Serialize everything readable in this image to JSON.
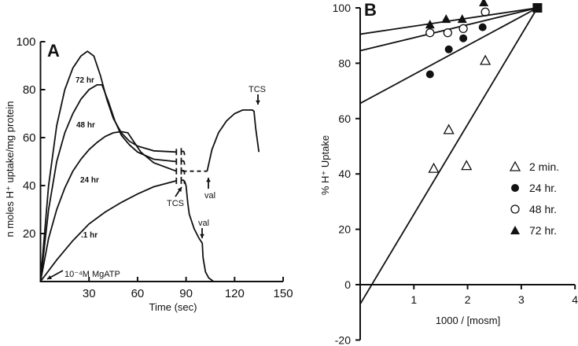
{
  "chart_data": [
    {
      "type": "line",
      "panel_label": "A",
      "xlabel": "Time (sec)",
      "ylabel": "n moles H⁺ uptake/mg protein",
      "xlim": [
        0,
        150
      ],
      "ylim": [
        0,
        100
      ],
      "xticks": [
        "30",
        "60",
        "90",
        "120",
        "150"
      ],
      "yticks": [
        "20",
        "40",
        "60",
        "80",
        "100"
      ],
      "series": [
        {
          "name": "72 hr",
          "points": [
            [
              0,
              0
            ],
            [
              5,
              40
            ],
            [
              10,
              65
            ],
            [
              15,
              80
            ],
            [
              20,
              89
            ],
            [
              25,
              94
            ],
            [
              29,
              96
            ],
            [
              33,
              94
            ],
            [
              37,
              86
            ],
            [
              41,
              76
            ],
            [
              45,
              68
            ],
            [
              50,
              62
            ],
            [
              55,
              58.5
            ],
            [
              60,
              56.5
            ],
            [
              70,
              54.5
            ],
            [
              84,
              54
            ]
          ]
        },
        {
          "name": "48 hr",
          "points": [
            [
              0,
              0
            ],
            [
              5,
              30
            ],
            [
              10,
              50
            ],
            [
              15,
              62
            ],
            [
              20,
              70
            ],
            [
              25,
              76
            ],
            [
              30,
              80
            ],
            [
              35,
              82
            ],
            [
              38,
              82
            ],
            [
              42,
              75
            ],
            [
              46,
              67
            ],
            [
              50,
              61
            ],
            [
              55,
              57
            ],
            [
              60,
              54
            ],
            [
              70,
              51
            ],
            [
              84,
              50
            ]
          ]
        },
        {
          "name": "24 hr",
          "points": [
            [
              0,
              0
            ],
            [
              5,
              18
            ],
            [
              10,
              30
            ],
            [
              15,
              39
            ],
            [
              20,
              46
            ],
            [
              25,
              51
            ],
            [
              30,
              55
            ],
            [
              35,
              58
            ],
            [
              40,
              60.5
            ],
            [
              45,
              62
            ],
            [
              50,
              62.5
            ],
            [
              54,
              62
            ],
            [
              58,
              58
            ],
            [
              62,
              54
            ],
            [
              70,
              49.5
            ],
            [
              84,
              46
            ]
          ],
          "continuation_dashed": [
            [
              88,
              46
            ],
            [
              103,
              46
            ]
          ],
          "continuation": [
            [
              103,
              46
            ],
            [
              106,
              55
            ],
            [
              110,
              62
            ],
            [
              115,
              67
            ],
            [
              120,
              70
            ],
            [
              125,
              71.5
            ],
            [
              131,
              71.5
            ],
            [
              132,
              71
            ],
            [
              133,
              64
            ],
            [
              135,
              54
            ]
          ]
        },
        {
          "name": ".1 hr",
          "points": [
            [
              0,
              0
            ],
            [
              10,
              9
            ],
            [
              20,
              17
            ],
            [
              30,
              24
            ],
            [
              40,
              29
            ],
            [
              50,
              33
            ],
            [
              60,
              36.5
            ],
            [
              70,
              39.5
            ],
            [
              84,
              42
            ]
          ],
          "continuation": [
            [
              89,
              42
            ],
            [
              90,
              40
            ],
            [
              91,
              33
            ],
            [
              92,
              28
            ],
            [
              95,
              22
            ],
            [
              98,
              18
            ],
            [
              100,
              16
            ],
            [
              100.5,
              10
            ],
            [
              102,
              4
            ],
            [
              104,
              1.5
            ],
            [
              107,
              0
            ]
          ]
        }
      ],
      "annotations": {
        "mgatp": "10⁻⁴M MgATP",
        "tcs_lower": "TCS",
        "val_lower": "val",
        "val_upper": "val",
        "tcs_upper": "TCS"
      }
    },
    {
      "type": "scatter",
      "panel_label": "B",
      "xlabel": "1000 / [mosm]",
      "ylabel": "% H⁺ Uptake",
      "xlim": [
        0,
        4
      ],
      "ylim": [
        -20,
        100
      ],
      "xticks": [
        "1",
        "2",
        "3",
        "4"
      ],
      "yticks": [
        "-20",
        "0",
        "20",
        "40",
        "60",
        "80",
        "100"
      ],
      "legend_position": "right",
      "common_point": [
        3.3,
        100
      ],
      "series": [
        {
          "name": "2 min.",
          "marker": "open-triangle",
          "points": [
            [
              1.37,
              42
            ],
            [
              1.65,
              56
            ],
            [
              1.98,
              43
            ],
            [
              2.33,
              81
            ]
          ],
          "fit": [
            [
              0,
              -7
            ],
            [
              3.3,
              100
            ]
          ]
        },
        {
          "name": "24 hr.",
          "marker": "filled-circle",
          "points": [
            [
              1.3,
              76
            ],
            [
              1.65,
              85
            ],
            [
              1.92,
              89
            ],
            [
              2.28,
              93
            ]
          ],
          "fit": [
            [
              0,
              65.5
            ],
            [
              3.3,
              100
            ]
          ]
        },
        {
          "name": "48 hr.",
          "marker": "open-circle",
          "points": [
            [
              1.3,
              91
            ],
            [
              1.63,
              91
            ],
            [
              1.92,
              92.5
            ],
            [
              2.33,
              98.5
            ]
          ],
          "fit": [
            [
              0,
              84.5
            ],
            [
              3.3,
              100
            ]
          ]
        },
        {
          "name": "72 hr.",
          "marker": "filled-triangle",
          "points": [
            [
              1.3,
              94
            ],
            [
              1.6,
              96
            ],
            [
              1.9,
              96
            ],
            [
              2.3,
              102
            ]
          ],
          "fit": [
            [
              0,
              90.5
            ],
            [
              3.3,
              100
            ]
          ]
        }
      ]
    }
  ]
}
